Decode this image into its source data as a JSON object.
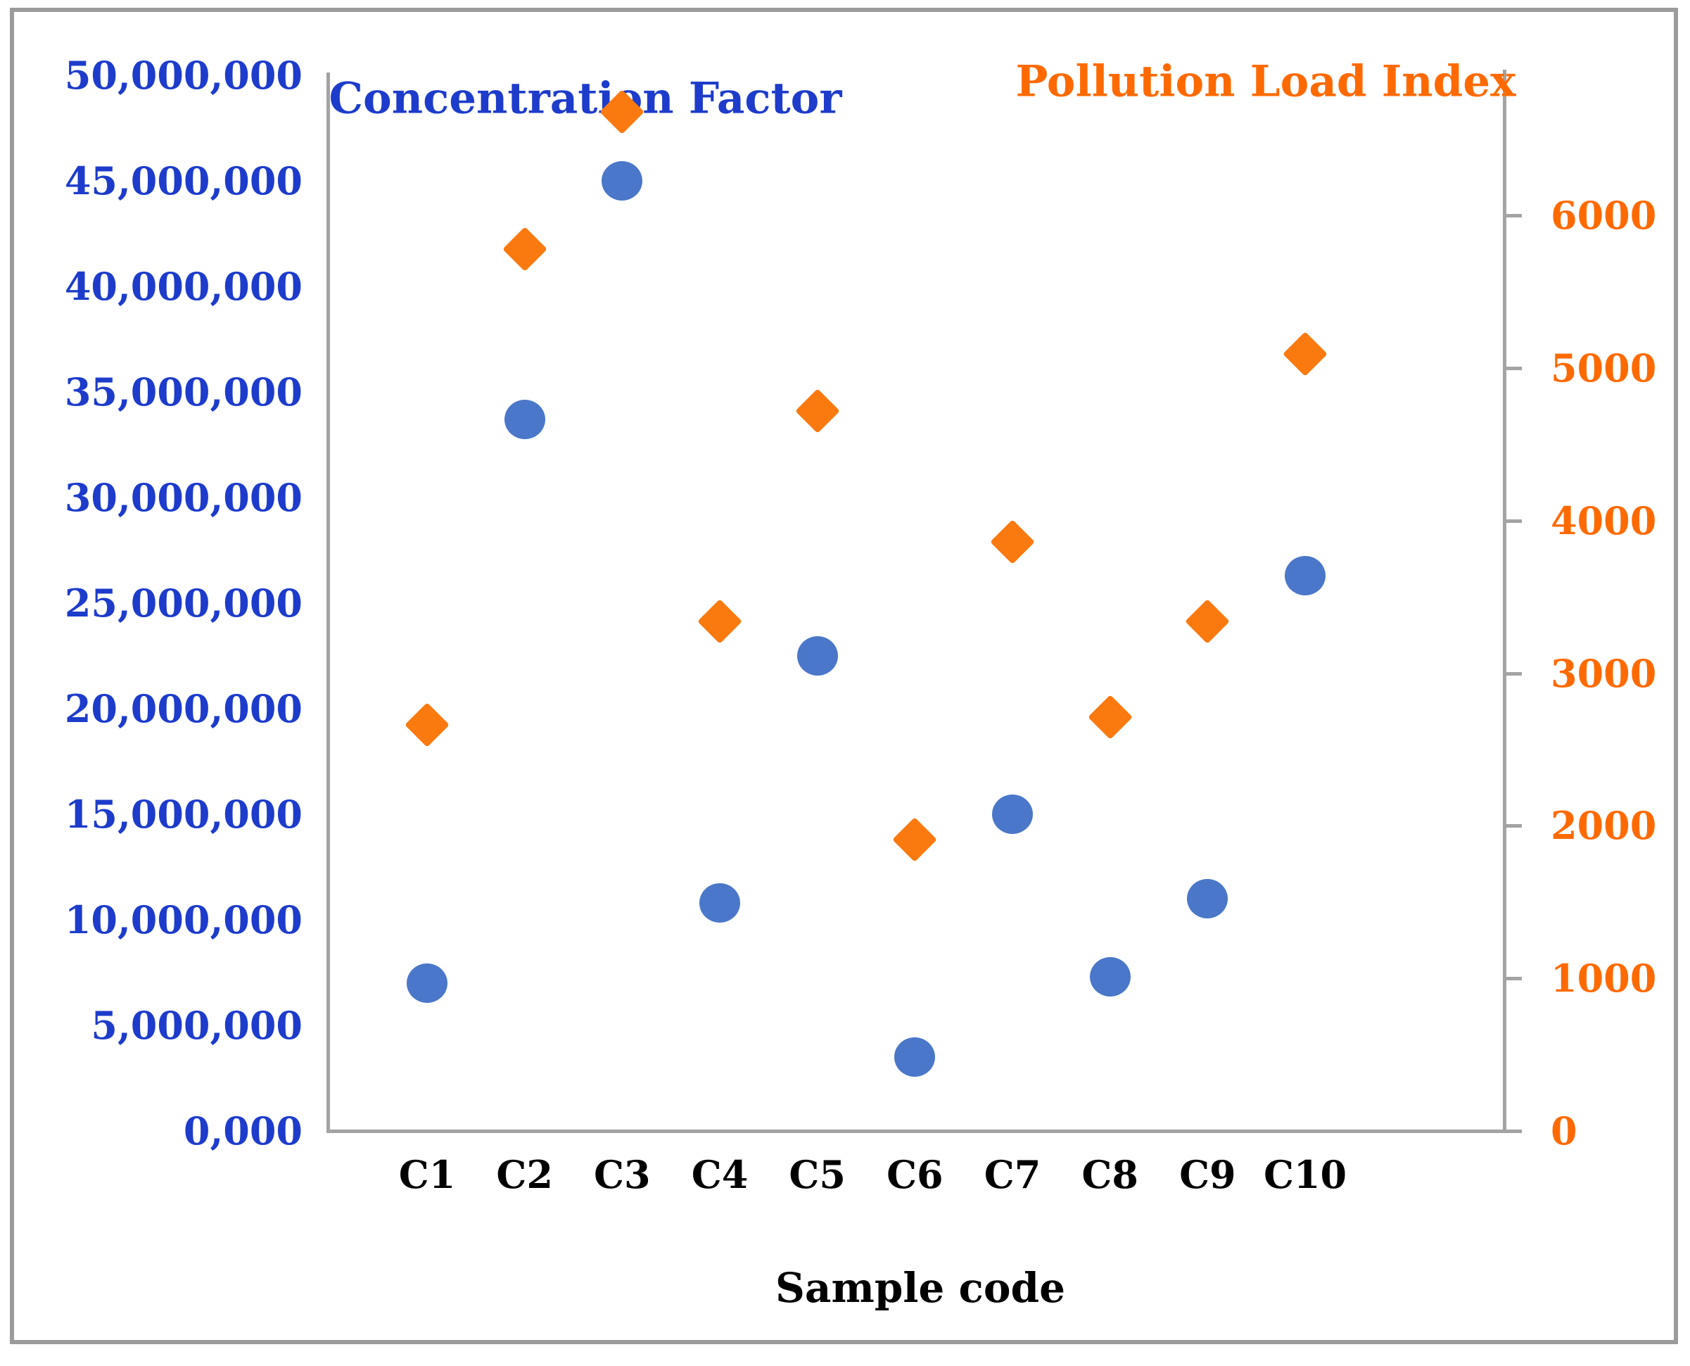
{
  "chart": {
    "series_titles": {
      "left": "Concentration Factor",
      "right": "Pollution Load Index"
    },
    "x_axis_title": "Sample code",
    "colors": {
      "blue_marker": "#4a77c9",
      "orange_marker": "#fa7a10",
      "blue_text": "#1d3ccb",
      "orange_text": "#fe6a00",
      "black_text": "#000000",
      "axis_gray": "#a3a3a3"
    },
    "left_axis_tick_labels": [
      "50,000,000",
      "45,000,000",
      "40,000,000",
      "35,000,000",
      "30,000,000",
      "25,000,000",
      "20,000,000",
      "15,000,000",
      "10,000,000",
      "5,000,000",
      "0,000"
    ],
    "right_axis_tick_labels": [
      "6000",
      "5000",
      "4000",
      "3000",
      "2000",
      "1000",
      "0"
    ],
    "x_categories": [
      "C1",
      "C2",
      "C3",
      "C4",
      "C5",
      "C6",
      "C7",
      "C8",
      "C9",
      "C10"
    ]
  },
  "chart_data": {
    "type": "scatter",
    "categories": [
      "C1",
      "C2",
      "C3",
      "C4",
      "C5",
      "C6",
      "C7",
      "C8",
      "C9",
      "C10"
    ],
    "series": [
      {
        "name": "Concentration Factor",
        "axis": "left",
        "marker": "circle",
        "color": "#4a77c9",
        "values": [
          7000000,
          33700000,
          45000000,
          10800000,
          22500000,
          3500000,
          15000000,
          7300000,
          11000000,
          26300000
        ]
      },
      {
        "name": "Pollution Load Index",
        "axis": "right",
        "marker": "diamond",
        "color": "#fa7a10",
        "values": [
          2660,
          5780,
          6680,
          3340,
          4720,
          1910,
          3860,
          2710,
          3340,
          5090
        ]
      }
    ],
    "title": "",
    "xlabel": "Sample code",
    "ylabel_left": "Concentration Factor",
    "ylabel_right": "Pollution Load Index",
    "ylim_left": [
      0,
      50000000
    ],
    "ylim_right": [
      0,
      6900
    ],
    "left_tick_step": 5000000,
    "right_tick_step": 1000,
    "grid": false,
    "legend_position": "top-inside-as-colored-titles"
  }
}
